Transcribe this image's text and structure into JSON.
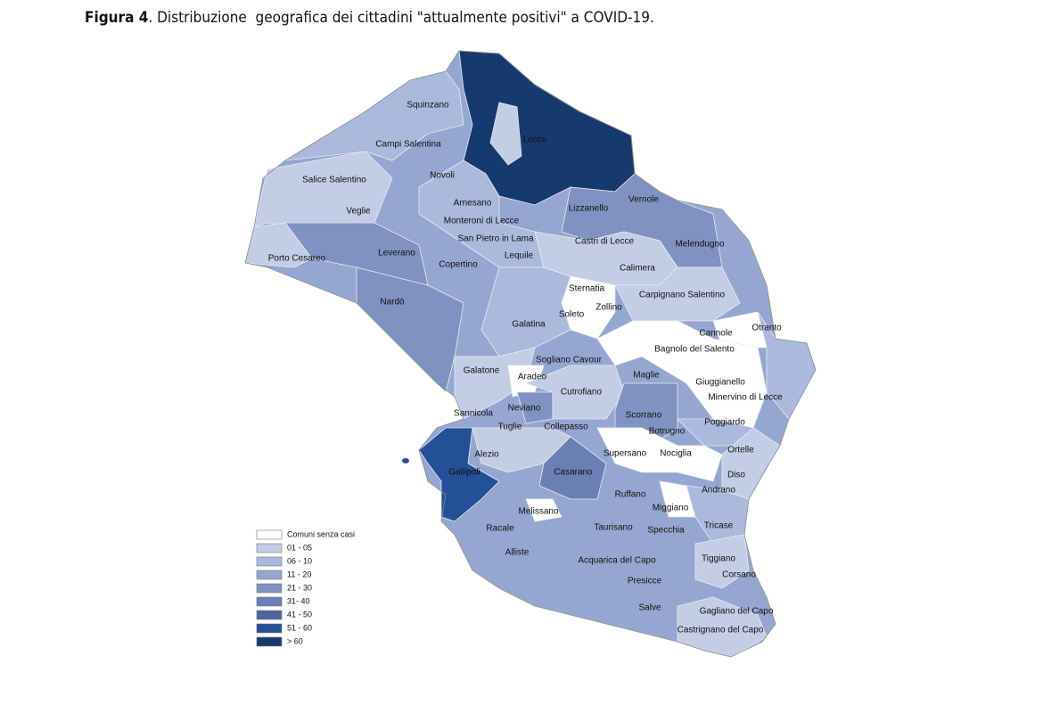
{
  "caption": {
    "label": "Figura 4",
    "text": ". Distribuzione  geografica dei cittadini \"attualmente positivi\" a COVID-19."
  },
  "legend": [
    {
      "label": "Comuni senza casi",
      "color": "#ffffff"
    },
    {
      "label": "01 - 05",
      "color": "#c3cde6"
    },
    {
      "label": "06 - 10",
      "color": "#aab9dc"
    },
    {
      "label": "11 - 20",
      "color": "#95a7d0"
    },
    {
      "label": "21 - 30",
      "color": "#7f92c1"
    },
    {
      "label": "31- 40",
      "color": "#6a7fb4"
    },
    {
      "label": "41 - 50",
      "color": "#4d659f"
    },
    {
      "label": "51 - 60",
      "color": "#235096"
    },
    {
      "label": "> 60",
      "color": "#173a6e"
    }
  ],
  "places": [
    "Squinzano",
    "Lecce",
    "Campi Salentina",
    "Novoli",
    "Salice Salentino",
    "Arnesano",
    "Veglie",
    "Lizzanello",
    "Vernole",
    "Monteroni di Lecce",
    "San Pietro in Lama",
    "Castri di Lecce",
    "Melendugno",
    "Porto Cesareo",
    "Leverano",
    "Lequile",
    "Copertino",
    "Calimera",
    "Sternatia",
    "Carpignano Salentino",
    "Zollino",
    "Nardò",
    "Soleto",
    "Galatina",
    "Cannole",
    "Otranto",
    "Bagnolo del Salento",
    "Sogliano Cavour",
    "Galatone",
    "Aradeo",
    "Maglie",
    "Giuggianello",
    "Cutrofiano",
    "Minervino di Lecce",
    "Neviano",
    "Sannicola",
    "Scorrano",
    "Poggiardo",
    "Tuglie",
    "Collepasso",
    "Botrugno",
    "Alezio",
    "Supersano",
    "Nociglia",
    "Ortelle",
    "Gallipoli",
    "Casarano",
    "Diso",
    "Andrano",
    "Ruffano",
    "Miggiano",
    "Melissano",
    "Racale",
    "Taurisano",
    "Specchia",
    "Tricase",
    "Alliste",
    "Acquarica del Capo",
    "Tiggiano",
    "Corsano",
    "Presicce",
    "Salve",
    "Gagliano del Capo",
    "Castrignano del Capo"
  ]
}
